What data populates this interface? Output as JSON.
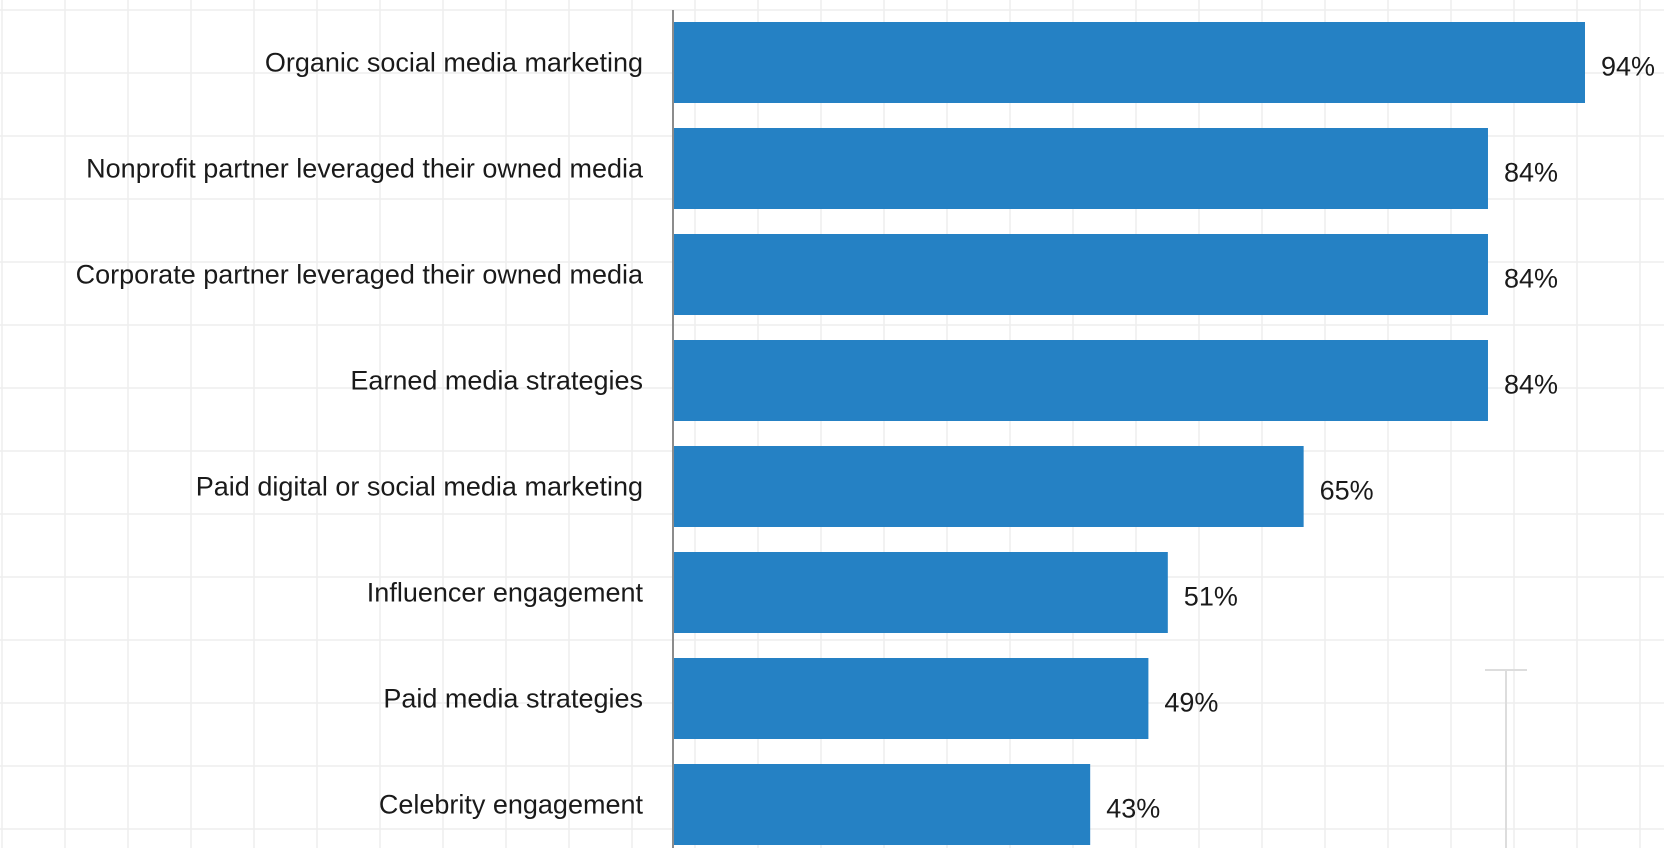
{
  "chart_data": {
    "type": "bar",
    "orientation": "horizontal",
    "categories": [
      "Organic social media marketing",
      "Nonprofit partner leveraged their owned media",
      "Corporate partner leveraged their owned media",
      "Earned media strategies",
      "Paid digital or social media marketing",
      "Influencer engagement",
      "Paid media strategies",
      "Celebrity engagement"
    ],
    "values": [
      94,
      84,
      84,
      84,
      65,
      51,
      49,
      43
    ],
    "value_labels": [
      "94%",
      "84%",
      "84%",
      "84%",
      "65%",
      "51%",
      "49%",
      "43%"
    ],
    "xlim": [
      0,
      100
    ],
    "unit": "%",
    "grid": true,
    "legend": "none"
  },
  "colors": {
    "bar": "#2581C4",
    "axis": "#8C8C8C",
    "grid": "#EEEEEE",
    "label_text": "#1A1A1A",
    "value_text": "#1A1A1A",
    "background": "#FFFFFF"
  }
}
